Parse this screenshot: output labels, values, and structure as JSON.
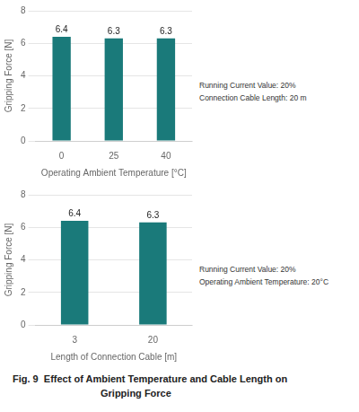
{
  "chart_data": [
    {
      "type": "bar",
      "categories": [
        "0",
        "25",
        "40"
      ],
      "values": [
        6.4,
        6.3,
        6.3
      ],
      "color": "#1a7a7a",
      "xlabel": "Operating Ambient Temperature [°C]",
      "ylabel": "Gripping Force [N]",
      "annotation": [
        "Running Current Value: 20%",
        "Connection Cable Length: 20 m"
      ],
      "ylim": [
        0,
        8
      ],
      "yticks": [
        0,
        2,
        4,
        6,
        8
      ],
      "grid": true,
      "data_labels": true
    },
    {
      "type": "bar",
      "categories": [
        "3",
        "20"
      ],
      "values": [
        6.4,
        6.3
      ],
      "color": "#1a7a7a",
      "xlabel": "Length of Connection Cable [m]",
      "ylabel": "Gripping Force [N]",
      "annotation": [
        "Running Current Value: 20%",
        "Operating Ambient Temperature: 20°C"
      ],
      "ylim": [
        0,
        8
      ],
      "yticks": [
        0,
        2,
        4,
        6,
        8
      ],
      "grid": true,
      "data_labels": true
    }
  ],
  "caption": [
    "Fig. 9  Effect of Ambient Temperature and Cable Length on",
    "Gripping Force"
  ]
}
